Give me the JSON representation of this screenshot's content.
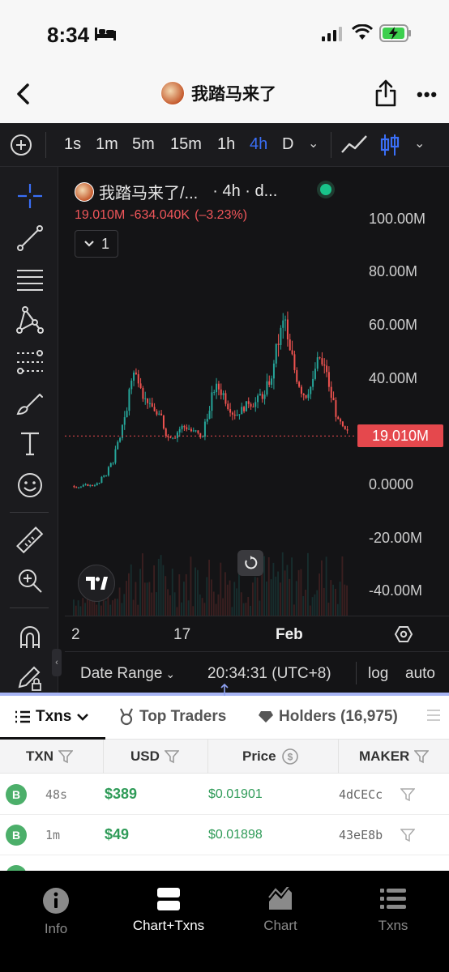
{
  "status_bar": {
    "time": "8:34"
  },
  "nav": {
    "title": "我踏马来了"
  },
  "timeframes": [
    "1s",
    "1m",
    "5m",
    "15m",
    "1h",
    "4h",
    "D"
  ],
  "active_timeframe": "4h",
  "legend": {
    "symbol": "我踏马来了/...",
    "meta": "· 4h · d..."
  },
  "ohlc": {
    "price": "19.010M",
    "change": "-634.040K",
    "pct": "(–3.23%)"
  },
  "collapse_count": "1",
  "chart_data": {
    "type": "candlestick",
    "y_ticks": [
      "100.00M",
      "80.00M",
      "60.00M",
      "40.00M",
      "0.0000",
      "-20.00M",
      "-40.00M"
    ],
    "x_ticks": [
      "2",
      "17",
      "Feb"
    ],
    "last_price_label": "19.010M",
    "close_series": [
      0.3,
      0.4,
      0.5,
      1.5,
      5,
      10,
      18,
      30,
      45,
      40,
      32,
      28,
      25,
      18,
      20,
      23,
      22,
      20,
      18,
      30,
      38,
      35,
      30,
      28,
      30,
      32,
      33,
      34,
      40,
      55,
      62,
      45,
      38,
      35,
      40,
      48,
      42,
      30,
      22,
      19
    ],
    "last_price": 19.01,
    "colors": {
      "up": "#26a69a",
      "down": "#ef5350"
    }
  },
  "chart_toolbar": {
    "date_range": "Date Range",
    "time": "20:34:31 (UTC+8)",
    "log": "log",
    "auto": "auto"
  },
  "tabs": {
    "txns": "Txns",
    "top_traders": "Top Traders",
    "holders": "Holders (16,975)"
  },
  "table": {
    "headers": {
      "txn": "TXN",
      "usd": "USD",
      "price": "Price",
      "maker": "MAKER"
    },
    "rows": [
      {
        "type": "B",
        "age": "48s",
        "usd": "$389",
        "price": "$0.01901",
        "maker": "4dCECc"
      },
      {
        "type": "B",
        "age": "1m",
        "usd": "$49",
        "price": "$0.01898",
        "maker": "43eE8b"
      }
    ]
  },
  "tabbar": {
    "info": "Info",
    "chart_txns": "Chart+Txns",
    "chart": "Chart",
    "txns": "Txns"
  }
}
